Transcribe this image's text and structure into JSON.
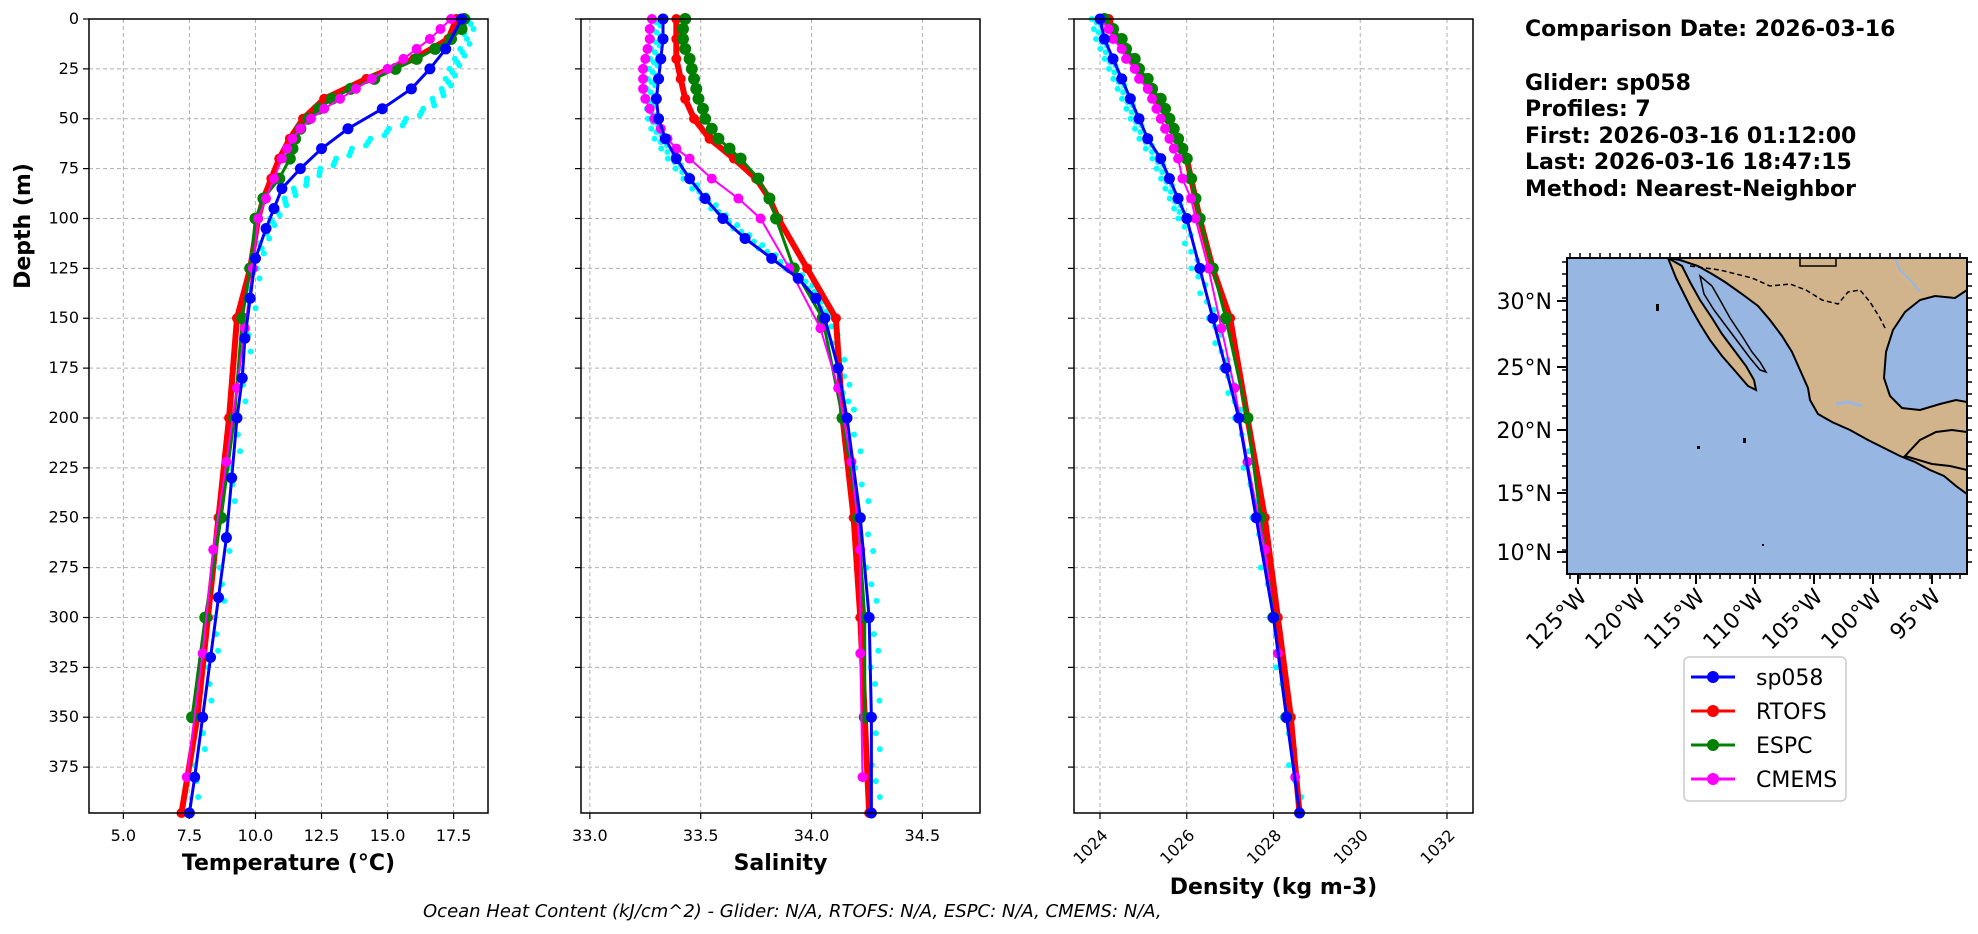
{
  "info": {
    "comparison_date": "Comparison Date: 2026-03-16",
    "glider": "Glider: sp058",
    "profiles": "Profiles: 7",
    "first": "First: 2026-03-16 01:12:00",
    "last": "Last: 2026-03-16 18:47:15",
    "method": "Method: Nearest-Neighbor"
  },
  "footer": "Ocean Heat Content (kJ/cm^2) - Glider: N/A,  RTOFS: N/A,  ESPC: N/A,  CMEMS: N/A,",
  "colors": {
    "sp058": "#0000ff",
    "rtofs": "#ff0000",
    "espc": "#008000",
    "cmems": "#ff00ff",
    "glider_raw": "#00ffff",
    "ocean": "#97b6e1",
    "land": "#d2b48c",
    "grid": "#b0b0b0"
  },
  "legend": [
    {
      "label": "sp058",
      "color": "#0000ff"
    },
    {
      "label": "RTOFS",
      "color": "#ff0000"
    },
    {
      "label": "ESPC",
      "color": "#008000"
    },
    {
      "label": "CMEMS",
      "color": "#ff00ff"
    }
  ],
  "map": {
    "lat_labels": [
      "30°N",
      "25°N",
      "20°N",
      "15°N",
      "10°N"
    ],
    "lon_labels": [
      "125°W",
      "120°W",
      "115°W",
      "110°W",
      "105°W",
      "100°W",
      "95°W"
    ]
  },
  "chart_data": [
    {
      "type": "line",
      "xlabel": "Temperature (°C)",
      "ylabel": "Depth (m)",
      "xlim": [
        3.7,
        18.8
      ],
      "ylim": [
        398,
        0
      ],
      "grid": true,
      "xticks": [
        5.0,
        7.5,
        10.0,
        12.5,
        15.0,
        17.5
      ],
      "yticks": [
        0,
        25,
        50,
        75,
        100,
        125,
        150,
        175,
        200,
        225,
        250,
        275,
        300,
        325,
        350,
        375
      ],
      "series": [
        {
          "name": "RTOFS",
          "depth": [
            0,
            10,
            20,
            30,
            40,
            50,
            60,
            70,
            80,
            90,
            100,
            125,
            150,
            200,
            250,
            300,
            350,
            400
          ],
          "values": [
            17.6,
            17.3,
            16.0,
            14.2,
            12.6,
            11.8,
            11.3,
            10.9,
            10.6,
            10.3,
            10.1,
            9.8,
            9.3,
            9.0,
            8.6,
            8.2,
            7.8,
            7.2
          ]
        },
        {
          "name": "ESPC",
          "depth": [
            0,
            5,
            10,
            15,
            20,
            25,
            30,
            35,
            40,
            45,
            50,
            55,
            60,
            65,
            70,
            80,
            90,
            100,
            125,
            150,
            200,
            250,
            300,
            350
          ],
          "values": [
            17.9,
            17.8,
            17.4,
            16.8,
            16.1,
            15.3,
            14.5,
            13.6,
            12.9,
            12.4,
            12.0,
            11.7,
            11.5,
            11.4,
            11.3,
            10.9,
            10.3,
            10.0,
            9.8,
            9.5,
            9.2,
            8.7,
            8.1,
            7.6
          ]
        },
        {
          "name": "CMEMS",
          "depth": [
            0,
            5,
            10,
            15,
            20,
            25,
            30,
            35,
            40,
            45,
            50,
            55,
            60,
            65,
            70,
            80,
            90,
            100,
            125,
            155,
            185,
            222,
            266,
            318,
            380
          ],
          "values": [
            17.4,
            17.0,
            16.6,
            16.1,
            15.6,
            15.0,
            14.4,
            13.8,
            13.2,
            12.6,
            12.1,
            11.7,
            11.4,
            11.2,
            11.0,
            10.7,
            10.4,
            10.1,
            9.9,
            9.6,
            9.3,
            8.9,
            8.4,
            8.0,
            7.4
          ]
        },
        {
          "name": "sp058",
          "depth": [
            0,
            15,
            25,
            35,
            45,
            55,
            65,
            75,
            85,
            95,
            105,
            120,
            140,
            160,
            180,
            200,
            230,
            260,
            290,
            320,
            350,
            380,
            398
          ],
          "values": [
            17.8,
            17.2,
            16.6,
            15.9,
            14.8,
            13.5,
            12.5,
            11.7,
            11.0,
            10.7,
            10.4,
            10.0,
            9.8,
            9.6,
            9.5,
            9.3,
            9.1,
            8.9,
            8.6,
            8.3,
            8.0,
            7.7,
            7.5
          ]
        },
        {
          "name": "",
          "depth": [
            0,
            15,
            25,
            35,
            45,
            55,
            65,
            75,
            85,
            95,
            105,
            120,
            150,
            200,
            250,
            300,
            350,
            398
          ],
          "values": [
            18.2,
            17.9,
            17.5,
            17.2,
            16.5,
            15.2,
            13.8,
            12.6,
            11.6,
            10.9,
            10.5,
            10.1,
            9.8,
            9.4,
            9.0,
            8.6,
            8.1,
            7.6
          ]
        }
      ]
    },
    {
      "type": "line",
      "xlabel": "Salinity",
      "ylabel": "",
      "xlim": [
        32.96,
        34.76
      ],
      "ylim": [
        398,
        0
      ],
      "grid": true,
      "xticks": [
        33.0,
        33.5,
        34.0,
        34.5
      ],
      "series": [
        {
          "name": "RTOFS",
          "depth": [
            0,
            10,
            20,
            30,
            40,
            50,
            60,
            70,
            80,
            90,
            100,
            125,
            150,
            200,
            250,
            300,
            350,
            400
          ],
          "values": [
            33.39,
            33.39,
            33.39,
            33.41,
            33.43,
            33.47,
            33.54,
            33.65,
            33.75,
            33.81,
            33.85,
            33.98,
            34.11,
            34.14,
            34.19,
            34.22,
            34.24,
            34.26
          ]
        },
        {
          "name": "ESPC",
          "depth": [
            0,
            5,
            10,
            15,
            20,
            25,
            30,
            35,
            40,
            45,
            50,
            55,
            60,
            65,
            70,
            80,
            90,
            100,
            125,
            150,
            200,
            250,
            300,
            350
          ],
          "values": [
            33.43,
            33.42,
            33.42,
            33.43,
            33.45,
            33.46,
            33.47,
            33.48,
            33.49,
            33.51,
            33.52,
            33.55,
            33.58,
            33.63,
            33.68,
            33.76,
            33.81,
            33.84,
            33.92,
            34.05,
            34.14,
            34.21,
            34.24,
            34.24
          ]
        },
        {
          "name": "CMEMS",
          "depth": [
            0,
            5,
            10,
            15,
            20,
            25,
            30,
            35,
            40,
            45,
            50,
            55,
            60,
            65,
            70,
            80,
            90,
            100,
            125,
            155,
            185,
            222,
            266,
            318,
            380
          ],
          "values": [
            33.28,
            33.27,
            33.27,
            33.26,
            33.25,
            33.24,
            33.24,
            33.24,
            33.25,
            33.27,
            33.29,
            33.32,
            33.35,
            33.39,
            33.45,
            33.55,
            33.67,
            33.77,
            33.9,
            34.04,
            34.12,
            34.18,
            34.22,
            34.22,
            34.23
          ]
        },
        {
          "name": "sp058",
          "depth": [
            0,
            10,
            20,
            30,
            40,
            50,
            60,
            70,
            80,
            90,
            100,
            110,
            120,
            130,
            140,
            150,
            175,
            200,
            250,
            300,
            350,
            398
          ],
          "values": [
            33.33,
            33.33,
            33.32,
            33.31,
            33.3,
            33.31,
            33.34,
            33.39,
            33.45,
            33.52,
            33.6,
            33.7,
            33.82,
            33.94,
            34.02,
            34.06,
            34.12,
            34.16,
            34.22,
            34.26,
            34.27,
            34.27
          ]
        },
        {
          "name": "",
          "depth": [
            0,
            10,
            20,
            30,
            40,
            50,
            60,
            70,
            80,
            90,
            100,
            110,
            120,
            130,
            140,
            150,
            175,
            200,
            250,
            300,
            350,
            398
          ],
          "values": [
            33.3,
            33.3,
            33.29,
            33.28,
            33.27,
            33.28,
            33.31,
            33.37,
            33.44,
            33.52,
            33.61,
            33.72,
            33.84,
            33.96,
            34.04,
            34.08,
            34.14,
            34.18,
            34.25,
            34.28,
            34.29,
            34.29
          ]
        }
      ]
    },
    {
      "type": "line",
      "xlabel": "Density (kg m-3)",
      "ylabel": "",
      "xlim": [
        1023.4,
        1032.6
      ],
      "ylim": [
        398,
        0
      ],
      "grid": true,
      "xticks": [
        1024,
        1026,
        1028,
        1030,
        1032
      ],
      "series": [
        {
          "name": "RTOFS",
          "depth": [
            0,
            10,
            20,
            30,
            40,
            50,
            60,
            70,
            80,
            90,
            100,
            125,
            150,
            200,
            250,
            300,
            350,
            400
          ],
          "values": [
            1024.2,
            1024.4,
            1024.7,
            1025.0,
            1025.3,
            1025.6,
            1025.8,
            1026.0,
            1026.1,
            1026.2,
            1026.3,
            1026.6,
            1027.0,
            1027.4,
            1027.8,
            1028.1,
            1028.4,
            1028.6
          ]
        },
        {
          "name": "ESPC",
          "depth": [
            0,
            5,
            10,
            15,
            20,
            25,
            30,
            35,
            40,
            45,
            50,
            55,
            60,
            65,
            70,
            80,
            90,
            100,
            125,
            150,
            200,
            250,
            300,
            350
          ],
          "values": [
            1024.1,
            1024.3,
            1024.5,
            1024.6,
            1024.8,
            1024.9,
            1025.1,
            1025.2,
            1025.4,
            1025.5,
            1025.6,
            1025.7,
            1025.8,
            1025.9,
            1026.0,
            1026.1,
            1026.2,
            1026.3,
            1026.6,
            1026.9,
            1027.4,
            1027.7,
            1028.0,
            1028.3
          ]
        },
        {
          "name": "CMEMS",
          "depth": [
            0,
            5,
            10,
            15,
            20,
            25,
            30,
            35,
            40,
            45,
            50,
            55,
            60,
            65,
            70,
            80,
            90,
            100,
            125,
            155,
            185,
            222,
            266,
            318,
            380
          ],
          "values": [
            1024.0,
            1024.2,
            1024.3,
            1024.5,
            1024.6,
            1024.8,
            1024.9,
            1025.1,
            1025.2,
            1025.3,
            1025.4,
            1025.5,
            1025.6,
            1025.7,
            1025.8,
            1025.9,
            1026.1,
            1026.2,
            1026.5,
            1026.8,
            1027.1,
            1027.4,
            1027.8,
            1028.1,
            1028.5
          ]
        },
        {
          "name": "sp058",
          "depth": [
            0,
            10,
            20,
            30,
            40,
            50,
            60,
            70,
            80,
            90,
            100,
            125,
            150,
            175,
            200,
            250,
            300,
            350,
            398
          ],
          "values": [
            1024.0,
            1024.1,
            1024.3,
            1024.5,
            1024.7,
            1024.9,
            1025.1,
            1025.4,
            1025.6,
            1025.8,
            1026.0,
            1026.3,
            1026.6,
            1026.9,
            1027.2,
            1027.6,
            1028.0,
            1028.3,
            1028.6
          ]
        },
        {
          "name": "",
          "depth": [
            0,
            10,
            20,
            30,
            40,
            50,
            60,
            70,
            80,
            90,
            100,
            125,
            150,
            175,
            200,
            250,
            300,
            350,
            398
          ],
          "values": [
            1023.9,
            1024.0,
            1024.2,
            1024.4,
            1024.6,
            1024.8,
            1025.0,
            1025.3,
            1025.5,
            1025.7,
            1025.9,
            1026.2,
            1026.6,
            1026.9,
            1027.2,
            1027.6,
            1028.0,
            1028.3,
            1028.6
          ]
        }
      ]
    }
  ]
}
